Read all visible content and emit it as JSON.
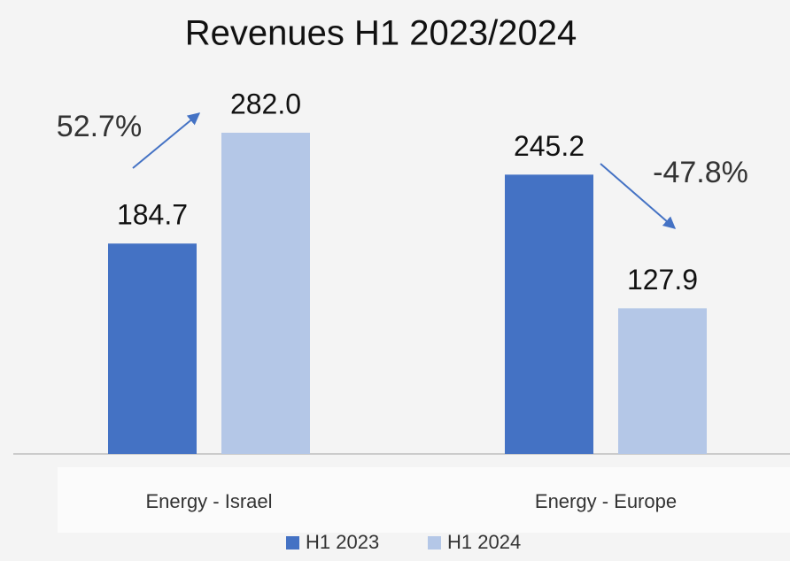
{
  "chart_data": {
    "type": "bar",
    "title": "Revenues H1 2023/2024",
    "categories": [
      "Energy - Israel",
      "Energy - Europe"
    ],
    "series": [
      {
        "name": "H1 2023",
        "color": "#4472c4",
        "values": [
          184.7,
          245.2
        ],
        "value_labels": [
          "184.7",
          "245.2"
        ]
      },
      {
        "name": "H1 2024",
        "color": "#b4c7e7",
        "values": [
          282,
          127.9
        ],
        "value_labels": [
          "282.0",
          "127.9"
        ]
      }
    ],
    "annotations": [
      "52.7%",
      "-47.8%"
    ],
    "legend": "bottom"
  }
}
